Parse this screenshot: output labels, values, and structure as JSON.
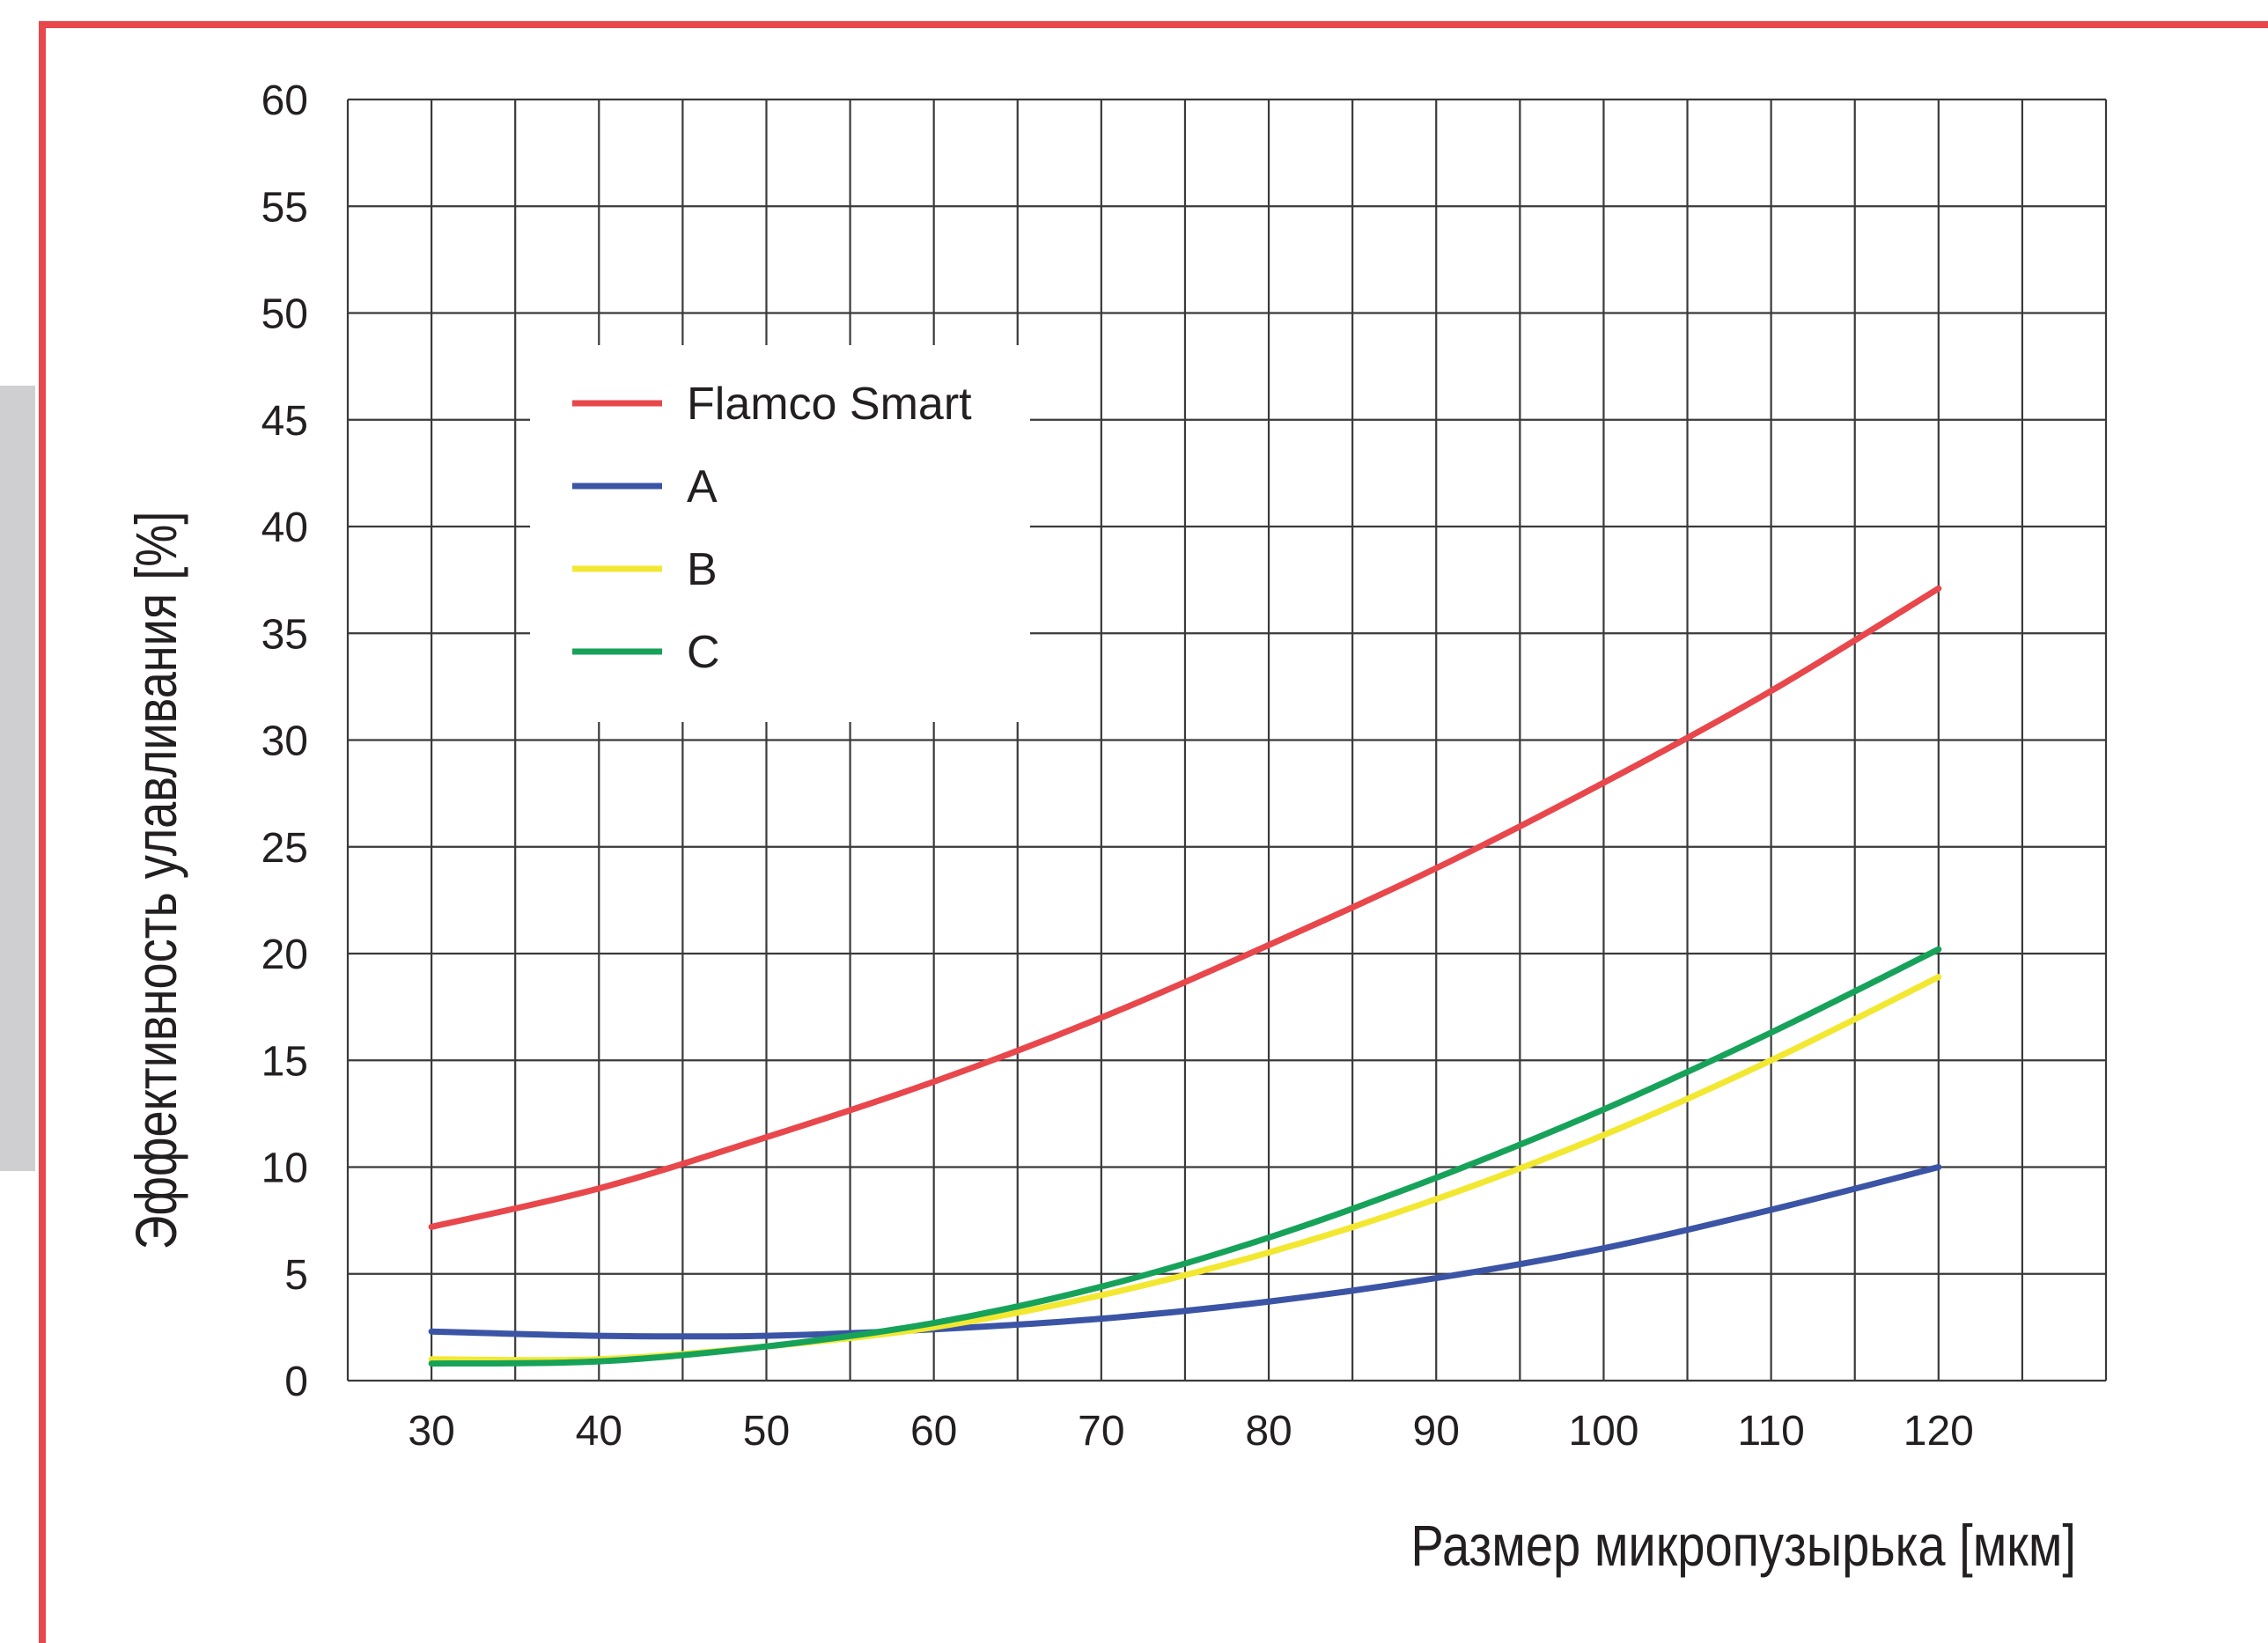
{
  "colors": {
    "frame": "#e8474c",
    "side_tab": "#cfcfd1",
    "grid": "#3a3a3a",
    "text": "#231f20"
  },
  "chart_data": {
    "type": "line",
    "title": "",
    "xlabel": "Размер микропузырька [мкм]",
    "ylabel": "Эффективность улавливания [%]",
    "xlim": [
      25,
      130
    ],
    "ylim": [
      0,
      60
    ],
    "x_ticks": [
      30,
      40,
      50,
      60,
      70,
      80,
      90,
      100,
      110,
      120
    ],
    "y_ticks": [
      0,
      5,
      10,
      15,
      20,
      25,
      30,
      35,
      40,
      45,
      50,
      55,
      60
    ],
    "grid": true,
    "legend_position": "top-left",
    "x": [
      30,
      40,
      50,
      60,
      70,
      80,
      90,
      100,
      110,
      120
    ],
    "series": [
      {
        "name": "Flamco Smart",
        "color": "#e8474c",
        "values": [
          7.2,
          9.0,
          11.4,
          14.0,
          17.0,
          20.4,
          24.0,
          28.0,
          32.3,
          37.1
        ]
      },
      {
        "name": "A",
        "color": "#3b54a5",
        "values": [
          2.3,
          2.1,
          2.1,
          2.4,
          2.9,
          3.7,
          4.8,
          6.2,
          8.0,
          10.0
        ]
      },
      {
        "name": "B",
        "color": "#f2e831",
        "values": [
          1.0,
          1.0,
          1.6,
          2.5,
          4.0,
          6.0,
          8.5,
          11.5,
          15.0,
          18.9
        ]
      },
      {
        "name": "C",
        "color": "#17a25a",
        "values": [
          0.8,
          0.9,
          1.6,
          2.7,
          4.4,
          6.7,
          9.5,
          12.7,
          16.3,
          20.2
        ]
      }
    ]
  }
}
